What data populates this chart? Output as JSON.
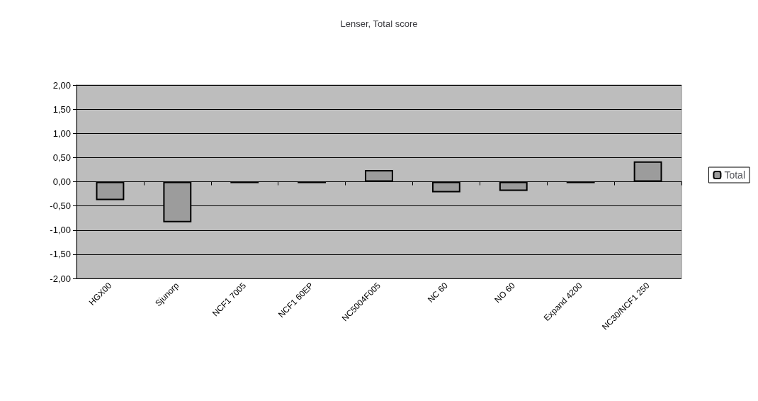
{
  "chart_data": {
    "type": "bar",
    "title": "Lenser, Total score",
    "categories": [
      "HGX00",
      "Sjunorp",
      "NCF1 7005",
      "NCF1 60EP",
      "NC5004F005",
      "NC 60",
      "NO 60",
      "Expand 4200",
      "NC30/NCF1 250"
    ],
    "series": [
      {
        "name": "Total",
        "color": "#9c9c9c",
        "values": [
          -0.38,
          -0.84,
          -0.03,
          -0.03,
          0.24,
          -0.22,
          -0.19,
          -0.03,
          0.42
        ]
      }
    ],
    "ylim": [
      -2,
      2
    ],
    "yticks": [
      {
        "value": -2,
        "label": "-2,00"
      },
      {
        "value": -1.5,
        "label": "-1,50"
      },
      {
        "value": -1,
        "label": "-1,00"
      },
      {
        "value": -0.5,
        "label": "-0,50"
      },
      {
        "value": 0,
        "label": "0,00"
      },
      {
        "value": 0.5,
        "label": "0,50"
      },
      {
        "value": 1,
        "label": "1,00"
      },
      {
        "value": 1.5,
        "label": "1,50"
      },
      {
        "value": 2,
        "label": "2,00"
      }
    ],
    "grid": "y",
    "legend": "right"
  }
}
